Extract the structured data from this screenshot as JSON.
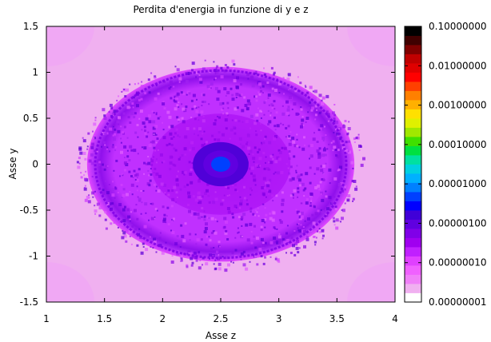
{
  "chart_data": {
    "type": "heatmap",
    "title": "Perdita d'energia in funzione di y e z",
    "xlabel": "Asse z",
    "ylabel": "Asse y",
    "xlim": [
      1,
      4
    ],
    "ylim": [
      -1.5,
      1.5
    ],
    "x_ticks": [
      "1",
      "1.5",
      "2",
      "2.5",
      "3",
      "3.5",
      "4"
    ],
    "y_ticks": [
      "1.5",
      "1",
      "0.5",
      "0",
      "-0.5",
      "-1",
      "-1.5"
    ],
    "colorbar": {
      "scale": "log",
      "range": [
        1e-08,
        0.1
      ],
      "tick_labels": [
        "0.10000000",
        "0.01000000",
        "0.00100000",
        "0.00010000",
        "0.00001000",
        "0.00000100",
        "0.00000010",
        "0.00000001"
      ],
      "colors": [
        "#ffffff",
        "#f0b0f0",
        "#f080f8",
        "#f060ff",
        "#e040ff",
        "#c020ff",
        "#a000f0",
        "#8000e8",
        "#6000e0",
        "#4000d8",
        "#0000ff",
        "#0040ff",
        "#0080ff",
        "#00b0ff",
        "#00d0e0",
        "#00e0a0",
        "#00e040",
        "#40e000",
        "#a0e800",
        "#e0f000",
        "#ffe000",
        "#ffb000",
        "#ff8000",
        "#ff4000",
        "#ff0000",
        "#e00000",
        "#c00000",
        "#800000",
        "#400000",
        "#000000"
      ]
    },
    "background_value": 2e-08,
    "center": {
      "z": 2.5,
      "y": 0.0
    },
    "features": [
      {
        "name": "outer-disc",
        "radius_z": 1.15,
        "radius_y": 1.06,
        "value": 2e-07
      },
      {
        "name": "ring",
        "radius_z": 1.08,
        "radius_y": 1.02,
        "value": 6e-07
      },
      {
        "name": "mid-disc",
        "radius_z": 0.6,
        "radius_y": 0.55,
        "value": 3e-07
      },
      {
        "name": "core",
        "radius_z": 0.15,
        "radius_y": 0.15,
        "value": 8e-07
      },
      {
        "name": "peak",
        "radius_z": 0.05,
        "radius_y": 0.05,
        "value": 5e-06
      }
    ]
  }
}
